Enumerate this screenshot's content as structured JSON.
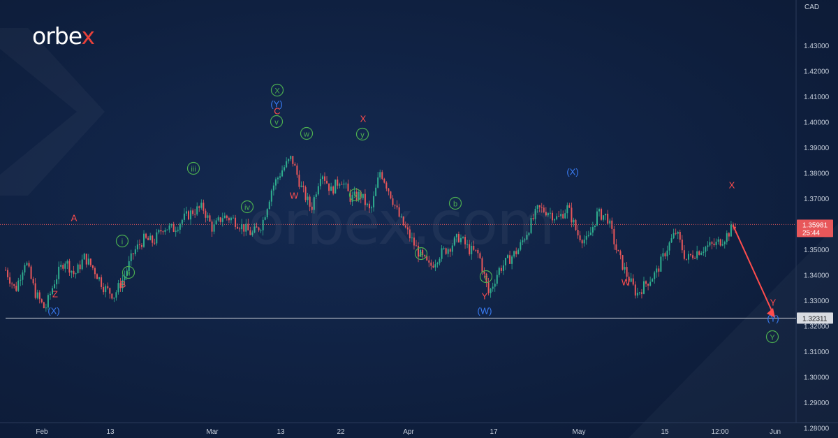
{
  "brand": {
    "logo_main": "orbe",
    "logo_x": "x",
    "watermark": "orbex.com"
  },
  "colors": {
    "candle_up": "#2fae8f",
    "candle_down": "#e8575a",
    "red_label": "#ff4d4d",
    "blue_label": "#3a7df5",
    "green_label": "#4caf50",
    "axis_text": "#c8d0dc",
    "support_line": "#c8ccd4",
    "current_line": "#e8575a"
  },
  "chart_data": {
    "type": "candlestick",
    "instrument_currency": "CAD",
    "ylim": [
      1.275,
      1.435
    ],
    "y_ticks": [
      "1.43000",
      "1.42000",
      "1.41000",
      "1.40000",
      "1.39000",
      "1.38000",
      "1.37000",
      "1.36000",
      "1.35000",
      "1.34000",
      "1.33000",
      "1.32000",
      "1.31000",
      "1.30000",
      "1.29000",
      "1.28000"
    ],
    "x_ticks": [
      "Feb",
      "13",
      "Mar",
      "13",
      "22",
      "Apr",
      "17",
      "May",
      "15",
      "12:00",
      "Jun"
    ],
    "current_price": {
      "label": "1.35981",
      "countdown": "25:44",
      "value": 1.35981
    },
    "support_level": {
      "label": "1.32311",
      "value": 1.32311
    },
    "price_path": [
      [
        "Feb-02",
        1.342
      ],
      [
        "Feb-05",
        1.334
      ],
      [
        "Feb-07",
        1.346
      ],
      [
        "Feb-09",
        1.333
      ],
      [
        "Feb-11",
        1.3265
      ],
      [
        "Feb-13",
        1.338
      ],
      [
        "Feb-16",
        1.346
      ],
      [
        "Feb-18",
        1.34
      ],
      [
        "Feb-20",
        1.347
      ],
      [
        "Feb-22",
        1.342
      ],
      [
        "Feb-25",
        1.335
      ],
      [
        "Feb-28",
        1.332
      ],
      [
        "Mar-02",
        1.339
      ],
      [
        "Mar-05",
        1.349
      ],
      [
        "Mar-07",
        1.354
      ],
      [
        "Mar-09",
        1.353
      ],
      [
        "Mar-12",
        1.359
      ],
      [
        "Mar-14",
        1.358
      ],
      [
        "Mar-16",
        1.362
      ],
      [
        "Mar-18",
        1.365
      ],
      [
        "Mar-20",
        1.3665
      ],
      [
        "Mar-22",
        1.358
      ],
      [
        "Mar-24",
        1.363
      ],
      [
        "Mar-26",
        1.362
      ],
      [
        "Mar-28",
        1.359
      ],
      [
        "Mar-30",
        1.356
      ],
      [
        "Apr-01",
        1.36
      ],
      [
        "Apr-03",
        1.374
      ],
      [
        "Apr-05",
        1.381
      ],
      [
        "Apr-07",
        1.386
      ],
      [
        "Apr-09",
        1.374
      ],
      [
        "Apr-11",
        1.366
      ],
      [
        "Apr-13",
        1.381
      ],
      [
        "Apr-15",
        1.373
      ],
      [
        "Apr-17",
        1.378
      ],
      [
        "Apr-19",
        1.37
      ],
      [
        "Apr-21",
        1.3715
      ],
      [
        "Apr-23",
        1.3645
      ],
      [
        "Apr-25",
        1.381
      ],
      [
        "Apr-27",
        1.372
      ],
      [
        "Apr-29",
        1.362
      ],
      [
        "May-01",
        1.355
      ],
      [
        "May-03",
        1.348
      ],
      [
        "May-05",
        1.343
      ],
      [
        "May-07",
        1.348
      ],
      [
        "May-09",
        1.351
      ],
      [
        "May-11",
        1.355
      ],
      [
        "May-13",
        1.35
      ],
      [
        "May-15",
        1.348
      ],
      [
        "May-17",
        1.3325
      ],
      [
        "May-19",
        1.342
      ],
      [
        "May-21",
        1.346
      ],
      [
        "May-23",
        1.35
      ],
      [
        "May-25",
        1.358
      ],
      [
        "May-27",
        1.366
      ],
      [
        "May-29",
        1.365
      ],
      [
        "May-31",
        1.362
      ],
      [
        "Jun-02",
        1.3665
      ],
      [
        "Jun-04",
        1.356
      ],
      [
        "Jun-06",
        1.353
      ],
      [
        "Jun-08",
        1.364
      ],
      [
        "Jun-10",
        1.363
      ],
      [
        "Jun-12",
        1.349
      ],
      [
        "Jun-14",
        1.34
      ],
      [
        "Jun-16",
        1.3325
      ],
      [
        "Jun-18",
        1.337
      ],
      [
        "Jun-20",
        1.341
      ],
      [
        "Jun-22",
        1.35
      ],
      [
        "Jun-24",
        1.357
      ],
      [
        "Jun-26",
        1.346
      ],
      [
        "Jun-28",
        1.349
      ],
      [
        "Jun-30",
        1.351
      ],
      [
        "Jul-02",
        1.352
      ],
      [
        "Jul-04",
        1.355
      ],
      [
        "Jul-06",
        1.36
      ]
    ],
    "forecast": {
      "from": 1.3598,
      "to": 1.3235
    },
    "wave_labels": [
      {
        "text": "A",
        "color": "red",
        "circled": false
      },
      {
        "text": "Z",
        "color": "red",
        "circled": false
      },
      {
        "text": "(X)",
        "color": "blue",
        "circled": false
      },
      {
        "text": "i",
        "color": "green",
        "circled": true
      },
      {
        "text": "ii",
        "color": "green",
        "circled": true
      },
      {
        "text": "B",
        "color": "red",
        "circled": false
      },
      {
        "text": "iii",
        "color": "green",
        "circled": true
      },
      {
        "text": "iv",
        "color": "green",
        "circled": true
      },
      {
        "text": "X",
        "color": "green",
        "circled": true
      },
      {
        "text": "(Y)",
        "color": "blue",
        "circled": false
      },
      {
        "text": "C",
        "color": "red",
        "circled": false
      },
      {
        "text": "v",
        "color": "green",
        "circled": true
      },
      {
        "text": "W",
        "color": "red",
        "circled": false
      },
      {
        "text": "w",
        "color": "green",
        "circled": true
      },
      {
        "text": "X",
        "color": "red",
        "circled": false
      },
      {
        "text": "y",
        "color": "green",
        "circled": true
      },
      {
        "text": "x",
        "color": "green",
        "circled": true
      },
      {
        "text": "b",
        "color": "green",
        "circled": true
      },
      {
        "text": "a",
        "color": "green",
        "circled": true
      },
      {
        "text": "c",
        "color": "green",
        "circled": true
      },
      {
        "text": "Y",
        "color": "red",
        "circled": false
      },
      {
        "text": "(W)",
        "color": "blue",
        "circled": false
      },
      {
        "text": "(X)",
        "color": "blue",
        "circled": false
      },
      {
        "text": "W",
        "color": "red",
        "circled": false
      },
      {
        "text": "X",
        "color": "red",
        "circled": false
      },
      {
        "text": "Y",
        "color": "red",
        "circled": false
      },
      {
        "text": "(Y)",
        "color": "blue",
        "circled": false
      },
      {
        "text": "Y",
        "color": "green",
        "circled": true
      }
    ]
  }
}
